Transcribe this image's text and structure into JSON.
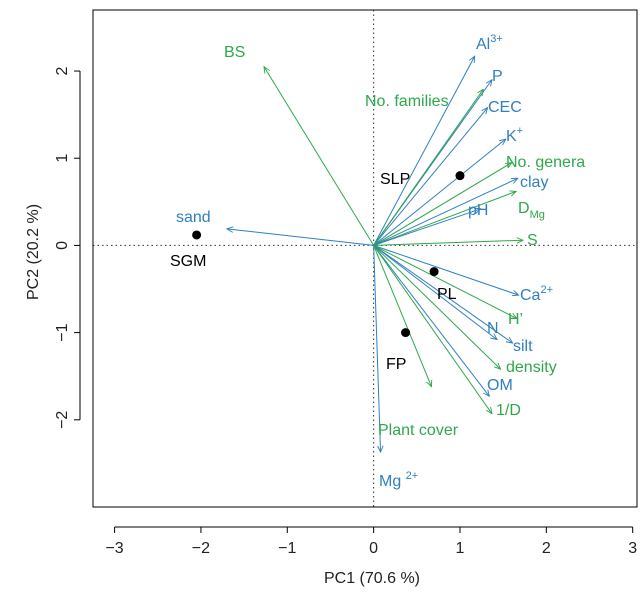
{
  "chart_data": {
    "type": "scatter",
    "title": "",
    "xlabel": "PC1 (70.6 %)",
    "ylabel": "PC2 (20.2 %)",
    "xlim": [
      -3.25,
      3.05
    ],
    "ylim": [
      -3.0,
      2.7
    ],
    "xticks": [
      -3,
      -2,
      -1,
      0,
      1,
      2,
      3
    ],
    "yticks": [
      -2,
      -1,
      0,
      1,
      2
    ],
    "xtick_labels": [
      "−3",
      "−2",
      "−1",
      "0",
      "1",
      "2",
      "3"
    ],
    "ytick_labels": [
      "−2",
      "−1",
      "0",
      "1",
      "2"
    ],
    "grid": false,
    "reference_lines": {
      "x": 0,
      "y": 0,
      "style": "dotted"
    },
    "colors": {
      "blue": "#2f7fc1",
      "green": "#2ea84a",
      "point": "#000000",
      "text": "#000000"
    },
    "points": [
      {
        "label": "SLP",
        "x": 1.0,
        "y": 0.8
      },
      {
        "label": "SGM",
        "x": -2.05,
        "y": 0.12
      },
      {
        "label": "PL",
        "x": 0.7,
        "y": -0.3
      },
      {
        "label": "FP",
        "x": 0.37,
        "y": -1.0
      }
    ],
    "vectors": [
      {
        "key": "al",
        "label": "Al",
        "sup": "3+",
        "color": "blue",
        "x": 1.17,
        "y": 2.17
      },
      {
        "key": "p",
        "label": "P",
        "color": "blue",
        "x": 1.37,
        "y": 1.9
      },
      {
        "key": "cec",
        "label": "CEC",
        "color": "blue",
        "x": 1.32,
        "y": 1.58
      },
      {
        "key": "k",
        "label": "K",
        "sup": "+",
        "color": "blue",
        "x": 1.53,
        "y": 1.22
      },
      {
        "key": "nogenera",
        "label": "No. genera",
        "color": "green",
        "x": 1.6,
        "y": 0.95
      },
      {
        "key": "nofamilies",
        "label": "No. families",
        "color": "green",
        "x": 1.27,
        "y": 1.79
      },
      {
        "key": "clay",
        "label": "clay",
        "color": "blue",
        "x": 1.67,
        "y": 0.77
      },
      {
        "key": "dmg",
        "label": "D",
        "sub": "Mg",
        "color": "green",
        "x": 1.65,
        "y": 0.62
      },
      {
        "key": "ph",
        "label": "pH",
        "color": "blue",
        "x": 1.24,
        "y": 0.42
      },
      {
        "key": "s",
        "label": "S",
        "color": "green",
        "x": 1.73,
        "y": 0.06
      },
      {
        "key": "bs",
        "label": "BS",
        "color": "green",
        "x": -1.27,
        "y": 2.05
      },
      {
        "key": "sand",
        "label": "sand",
        "color": "blue",
        "x": -1.7,
        "y": 0.19
      },
      {
        "key": "ca",
        "label": "Ca",
        "sup": "2+",
        "color": "blue",
        "x": 1.68,
        "y": -0.57
      },
      {
        "key": "h",
        "label": "H’",
        "color": "green",
        "x": 1.66,
        "y": -0.84
      },
      {
        "key": "n",
        "label": "N",
        "color": "blue",
        "x": 1.43,
        "y": -1.08
      },
      {
        "key": "silt",
        "label": "silt",
        "color": "blue",
        "x": 1.61,
        "y": -1.12
      },
      {
        "key": "density",
        "label": "density",
        "color": "green",
        "x": 1.47,
        "y": -1.42
      },
      {
        "key": "om",
        "label": "OM",
        "color": "blue",
        "x": 1.34,
        "y": -1.73
      },
      {
        "key": "invd",
        "label": "1/D",
        "color": "green",
        "x": 1.37,
        "y": -1.93
      },
      {
        "key": "plantcover",
        "label": "Plant cover",
        "color": "green",
        "x": 0.67,
        "y": -1.62
      },
      {
        "key": "mg",
        "label": "Mg ",
        "sup": "2+",
        "color": "blue",
        "x": 0.08,
        "y": -2.37
      }
    ]
  }
}
